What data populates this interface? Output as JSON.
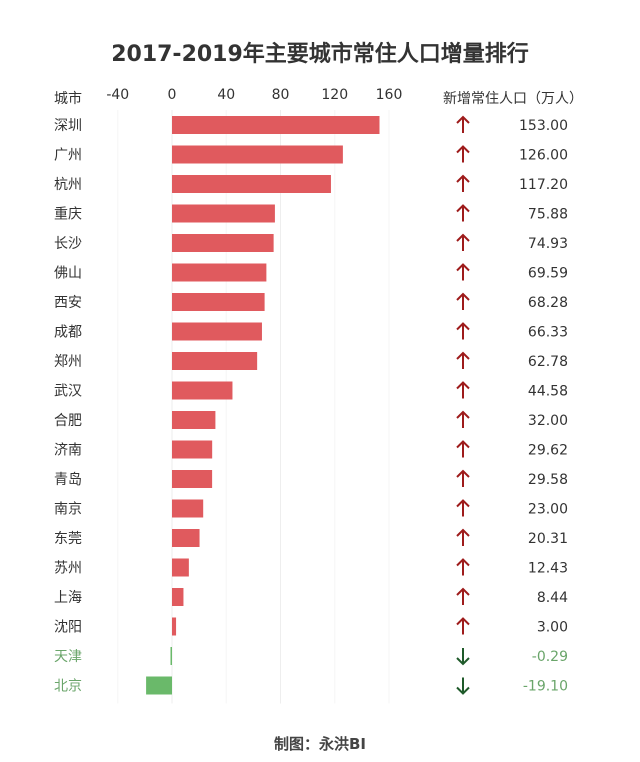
{
  "chart_data": {
    "type": "bar",
    "title": "2017-2019年主要城市常住人口增量排行",
    "category_header": "城市",
    "value_header": "新增常住人口（万人）",
    "xlim": [
      -40,
      160
    ],
    "xticks": [
      -40,
      0,
      40,
      80,
      120,
      160
    ],
    "categories": [
      "深圳",
      "广州",
      "杭州",
      "重庆",
      "长沙",
      "佛山",
      "西安",
      "成都",
      "郑州",
      "武汉",
      "合肥",
      "济南",
      "青岛",
      "南京",
      "东莞",
      "苏州",
      "上海",
      "沈阳",
      "天津",
      "北京"
    ],
    "values": [
      153.0,
      126.0,
      117.2,
      75.88,
      74.93,
      69.59,
      68.28,
      66.33,
      62.78,
      44.58,
      32.0,
      29.62,
      29.58,
      23.0,
      20.31,
      12.43,
      8.44,
      3.0,
      -0.29,
      -19.1
    ],
    "value_labels": [
      "153.00",
      "126.00",
      "117.20",
      "75.88",
      "74.93",
      "69.59",
      "68.28",
      "66.33",
      "62.78",
      "44.58",
      "32.00",
      "29.62",
      "29.58",
      "23.00",
      "20.31",
      "12.43",
      "8.44",
      "3.00",
      "-0.29",
      "-19.10"
    ],
    "colors": {
      "positive_bar": "#e05a5e",
      "negative_bar": "#6ab96a",
      "up_arrow": "#9e1b1b",
      "down_arrow": "#1f5a2a",
      "positive_text": "#333333",
      "negative_text": "#6aa56a",
      "grid": "#eeeeee"
    },
    "grid": true,
    "legend": "none"
  },
  "footer": "制图：永洪BI"
}
